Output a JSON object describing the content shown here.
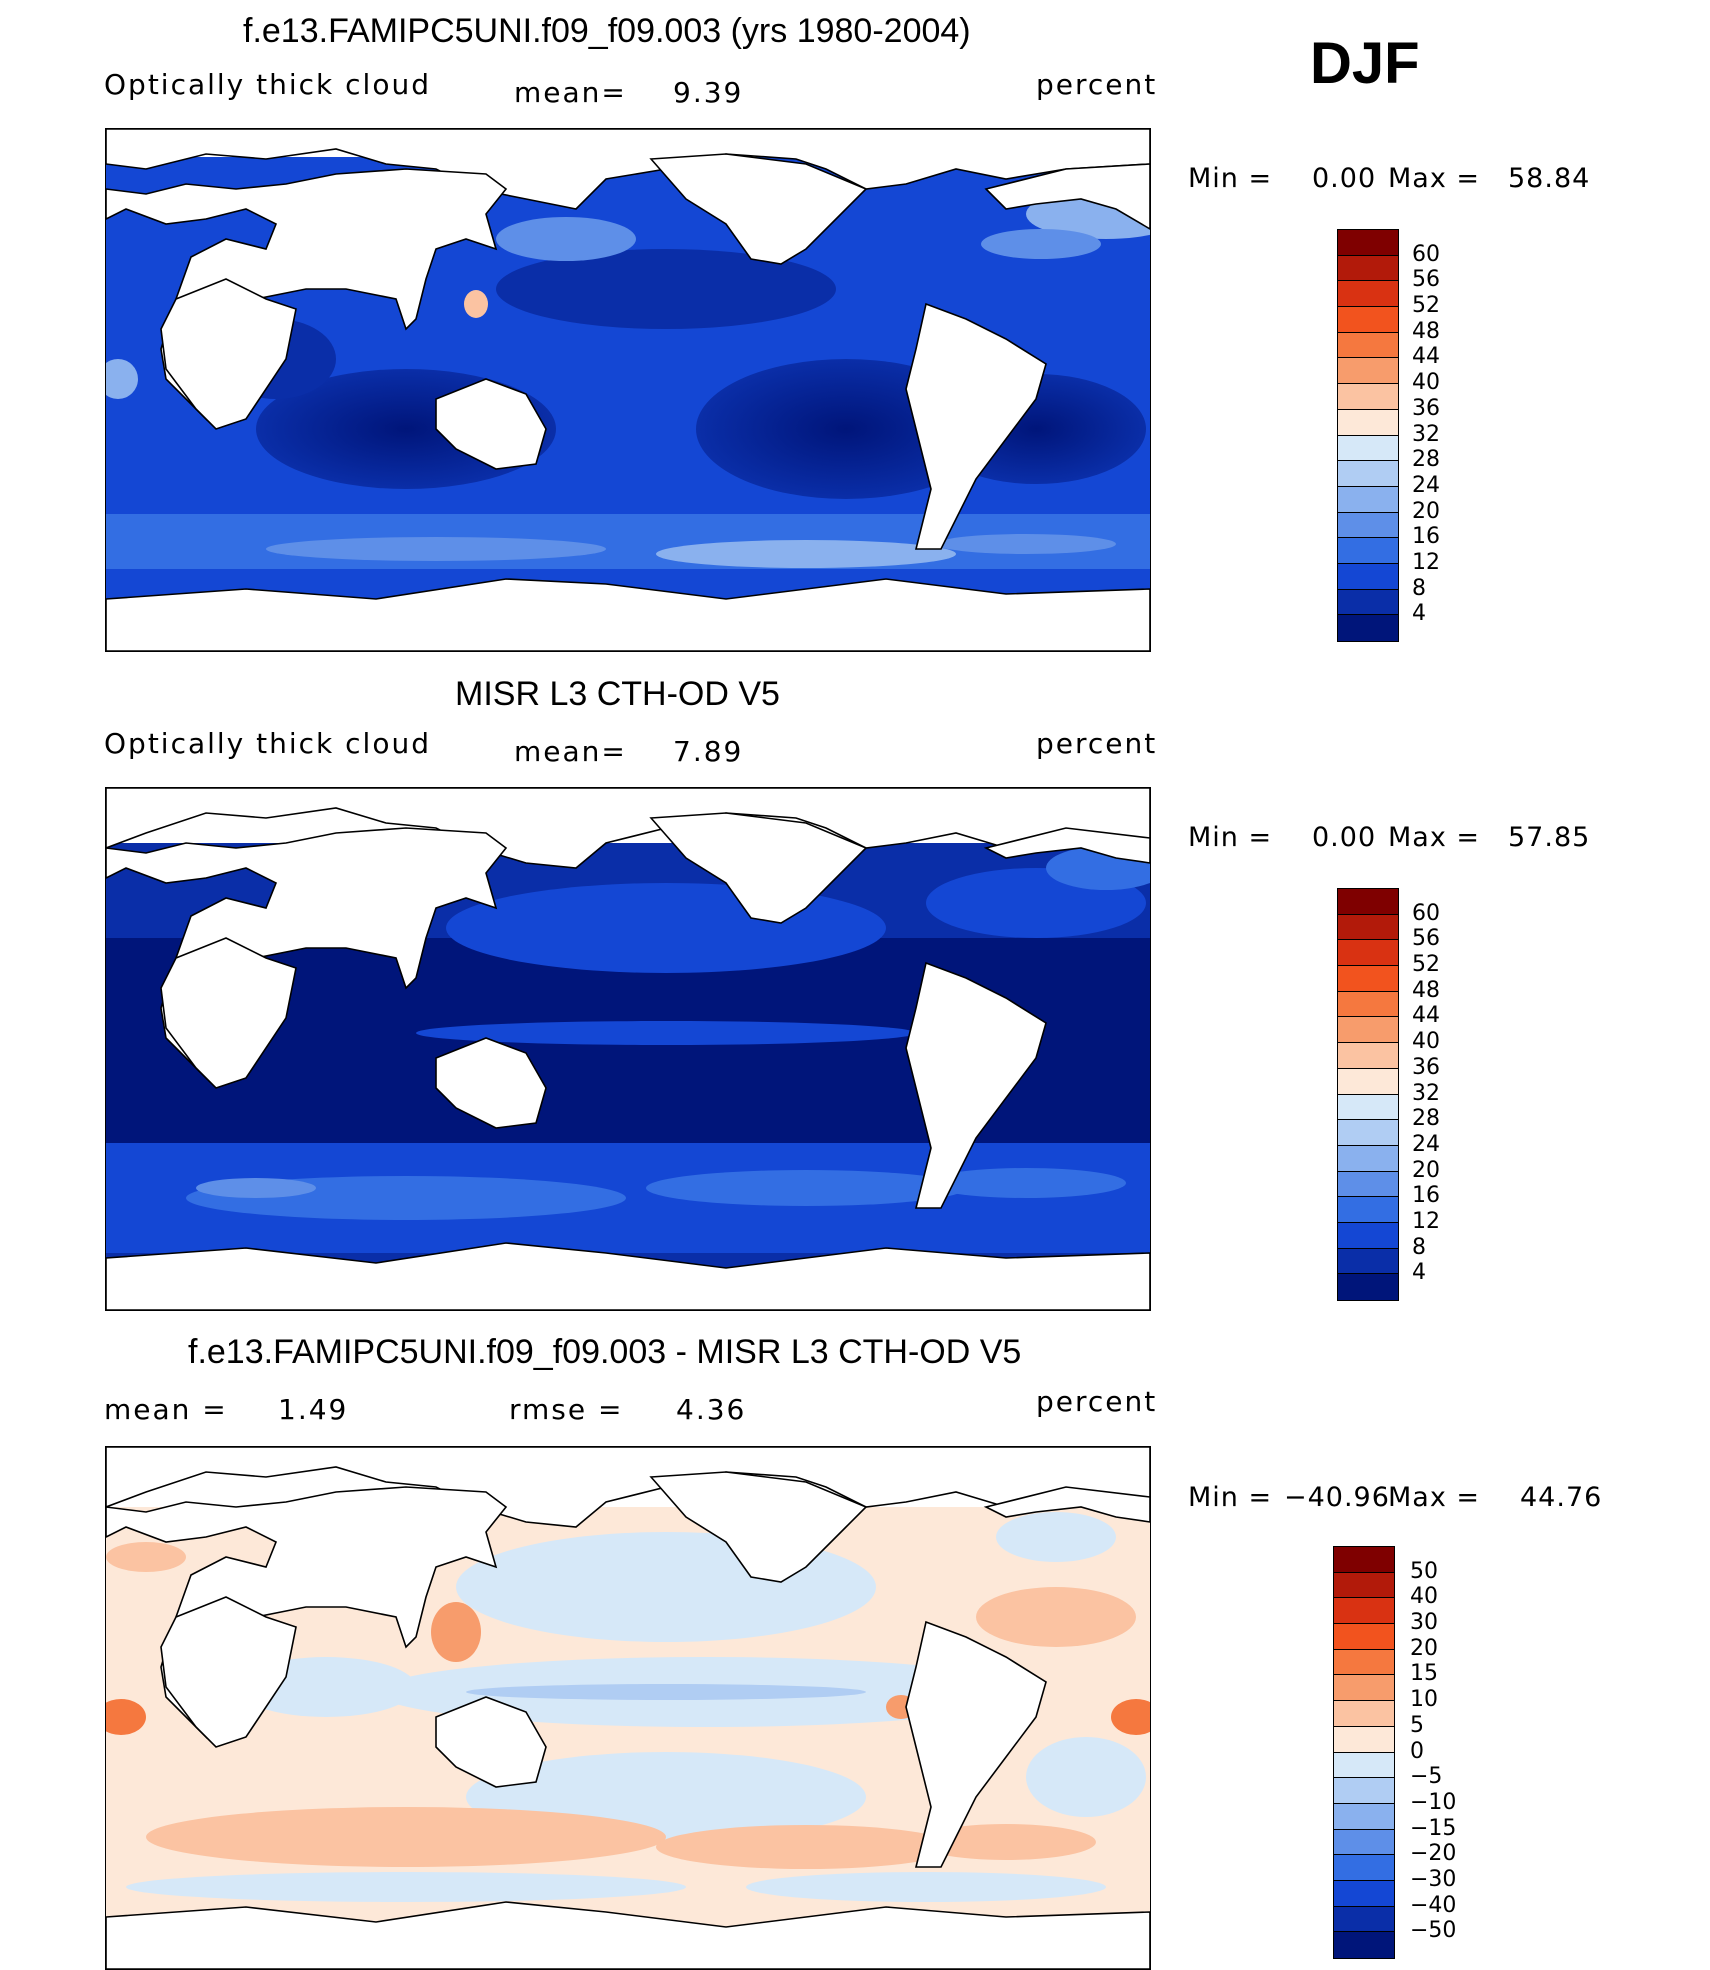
{
  "season": "DJF",
  "panels": [
    {
      "title": "f.e13.FAMIPC5UNI.f09_f09.003 (yrs 1980-2004)",
      "left": "Optically thick cloud",
      "center_label": "mean=",
      "center_value": "9.39",
      "right": "percent",
      "min_label": "Min  =",
      "min_value": "0.00",
      "max_label": "Max  =",
      "max_value": "58.84",
      "palette": "pos"
    },
    {
      "title": "MISR L3 CTH-OD V5",
      "left": "Optically thick cloud",
      "center_label": "mean=",
      "center_value": "7.89",
      "right": "percent",
      "min_label": "Min  =",
      "min_value": "0.00",
      "max_label": "Max  =",
      "max_value": "57.85",
      "palette": "pos"
    },
    {
      "title": "f.e13.FAMIPC5UNI.f09_f09.003 - MISR L3 CTH-OD V5",
      "left": "mean  =",
      "left_value": "1.49",
      "center_label": "rmse  =",
      "center_value": "4.36",
      "right": "percent",
      "min_label": "Min  =",
      "min_value": "−40.96",
      "max_label": "Max  =",
      "max_value": "44.76",
      "palette": "diff"
    }
  ],
  "colorbars": {
    "pos": {
      "labels": [
        "60",
        "56",
        "52",
        "48",
        "44",
        "40",
        "36",
        "32",
        "28",
        "24",
        "20",
        "16",
        "12",
        "8",
        "4"
      ],
      "colors": [
        "#7f0000",
        "#b21a0a",
        "#d93212",
        "#f2531e",
        "#f5783f",
        "#f79c6c",
        "#fbc3a2",
        "#fde8d8",
        "#d6e8f8",
        "#b0cdf3",
        "#8ab1ee",
        "#5e8fe8",
        "#336ee3",
        "#1447d4",
        "#0a2ea8",
        "#00157a"
      ]
    },
    "diff": {
      "labels": [
        "50",
        "40",
        "30",
        "20",
        "15",
        "10",
        "5",
        "0",
        "−5",
        "−10",
        "−15",
        "−20",
        "−30",
        "−40",
        "−50"
      ],
      "colors": [
        "#7f0000",
        "#b21a0a",
        "#d93212",
        "#f2531e",
        "#f5783f",
        "#f79c6c",
        "#fbc3a2",
        "#fde8d8",
        "#d6e8f8",
        "#b0cdf3",
        "#8ab1ee",
        "#5e8fe8",
        "#336ee3",
        "#1447d4",
        "#0a2ea8",
        "#00157a"
      ]
    }
  },
  "colors": {
    "land": "#ffffff",
    "coastline": "#000000",
    "ocean_model": "#1a3fd0",
    "ocean_misr": "#0a2fb0",
    "ocean_diff": "#fbd9c4"
  }
}
